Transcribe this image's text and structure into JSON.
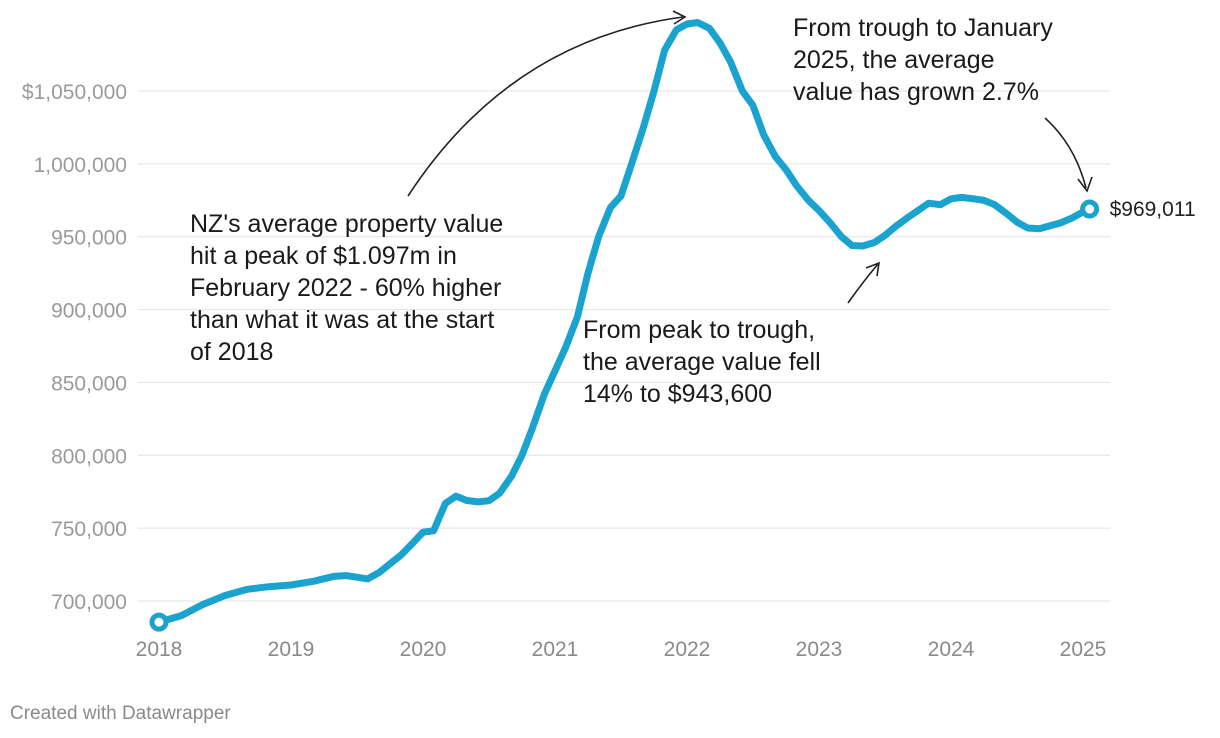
{
  "chart_data": {
    "type": "line",
    "title": "",
    "xlabel": "",
    "ylabel": "",
    "ylim": [
      680000,
      1100000
    ],
    "xlim": [
      2018,
      2025.08
    ],
    "y_ticks": [
      {
        "value": 1050000,
        "label": "$1,050,000"
      },
      {
        "value": 1000000,
        "label": "1,000,000"
      },
      {
        "value": 950000,
        "label": "950,000"
      },
      {
        "value": 900000,
        "label": "900,000"
      },
      {
        "value": 850000,
        "label": "850,000"
      },
      {
        "value": 800000,
        "label": "800,000"
      },
      {
        "value": 750000,
        "label": "750,000"
      },
      {
        "value": 700000,
        "label": "700,000"
      }
    ],
    "x_ticks": [
      {
        "value": 2018,
        "label": "2018"
      },
      {
        "value": 2019,
        "label": "2019"
      },
      {
        "value": 2020,
        "label": "2020"
      },
      {
        "value": 2021,
        "label": "2021"
      },
      {
        "value": 2022,
        "label": "2022"
      },
      {
        "value": 2023,
        "label": "2023"
      },
      {
        "value": 2024,
        "label": "2024"
      },
      {
        "value": 2025,
        "label": "2025"
      }
    ],
    "series": [
      {
        "name": "Average property value (NZ)",
        "color": "#1aa3cf",
        "x": [
          2018.0,
          2018.17,
          2018.33,
          2018.5,
          2018.67,
          2018.83,
          2019.0,
          2019.17,
          2019.33,
          2019.42,
          2019.5,
          2019.58,
          2019.67,
          2019.83,
          2019.92,
          2020.0,
          2020.08,
          2020.17,
          2020.25,
          2020.33,
          2020.42,
          2020.5,
          2020.58,
          2020.67,
          2020.75,
          2020.83,
          2020.92,
          2021.0,
          2021.08,
          2021.17,
          2021.25,
          2021.33,
          2021.42,
          2021.5,
          2021.58,
          2021.67,
          2021.75,
          2021.83,
          2021.92,
          2022.0,
          2022.08,
          2022.17,
          2022.25,
          2022.33,
          2022.42,
          2022.5,
          2022.58,
          2022.67,
          2022.75,
          2022.83,
          2022.92,
          2023.0,
          2023.08,
          2023.17,
          2023.25,
          2023.33,
          2023.42,
          2023.5,
          2023.58,
          2023.67,
          2023.75,
          2023.83,
          2023.92,
          2024.0,
          2024.08,
          2024.17,
          2024.25,
          2024.33,
          2024.42,
          2024.5,
          2024.58,
          2024.67,
          2024.75,
          2024.83,
          2024.92,
          2025.0,
          2025.05
        ],
        "values": [
          685500,
          690000,
          697500,
          703800,
          708000,
          709800,
          711000,
          713500,
          717000,
          717400,
          716300,
          715200,
          719700,
          731300,
          739500,
          747200,
          748200,
          767000,
          772000,
          769000,
          768000,
          768800,
          774000,
          785500,
          800000,
          819000,
          842000,
          858000,
          874000,
          895000,
          925000,
          950000,
          970000,
          978000,
          1000000,
          1025000,
          1050000,
          1078000,
          1092000,
          1096000,
          1097000,
          1093000,
          1083000,
          1070000,
          1050000,
          1040000,
          1020000,
          1005000,
          996000,
          985000,
          975000,
          968000,
          960000,
          950000,
          944000,
          943600,
          946000,
          951000,
          957000,
          963000,
          968000,
          973000,
          972000,
          976000,
          977000,
          976000,
          975000,
          972000,
          966000,
          960000,
          956000,
          955500,
          957500,
          959500,
          963000,
          967000,
          969011
        ]
      }
    ],
    "end_point": {
      "x": 2025.05,
      "value": 969011,
      "label": "$969,011"
    },
    "annotations": [
      {
        "name": "peak",
        "lines": [
          "NZ's average property value",
          "hit a peak of $1.097m in",
          "February 2022 - 60% higher",
          "than what it was at the start",
          "of 2018"
        ]
      },
      {
        "name": "trough",
        "lines": [
          "From peak to trough,",
          "the average value fell",
          "14% to $943,600"
        ]
      },
      {
        "name": "recovery",
        "lines": [
          "From trough to January",
          "2025, the average",
          "value has grown 2.7%"
        ]
      }
    ]
  },
  "footer": {
    "credit": "Created with Datawrapper"
  }
}
